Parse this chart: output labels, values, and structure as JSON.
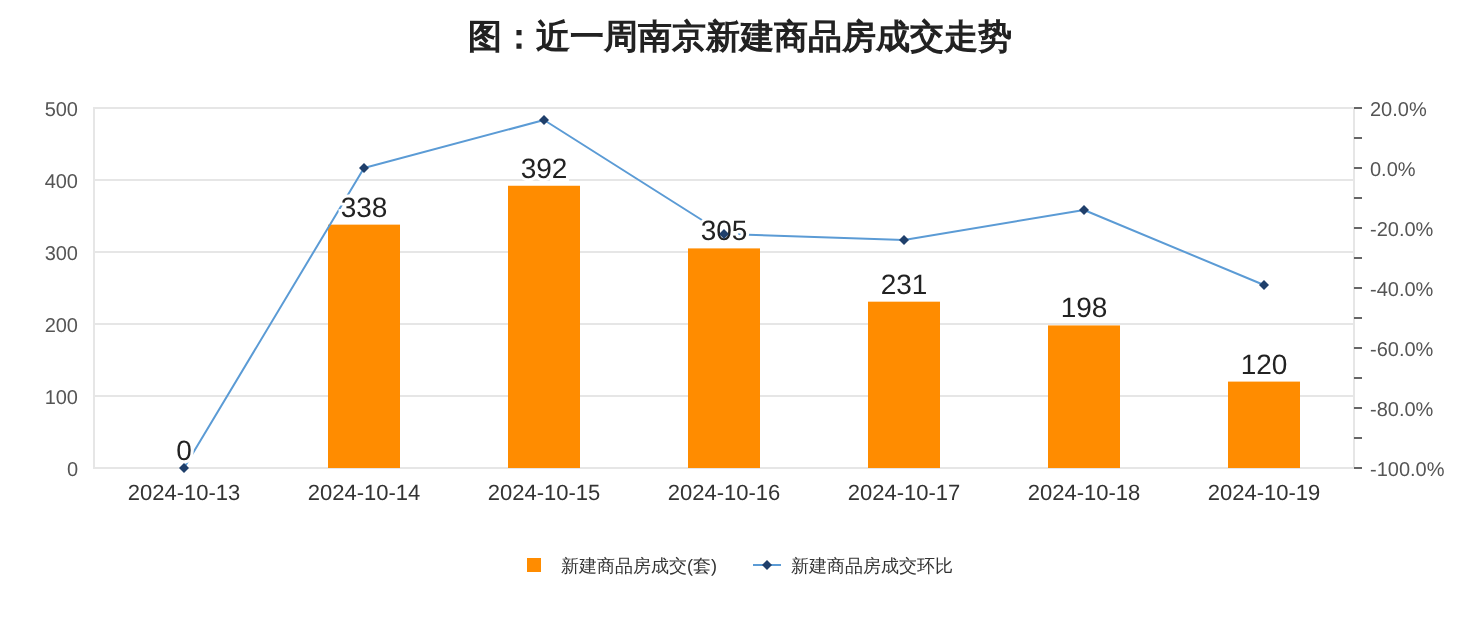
{
  "chart_data": {
    "type": "bar",
    "title": "图：近一周南京新建商品房成交走势",
    "categories": [
      "2024-10-13",
      "2024-10-14",
      "2024-10-15",
      "2024-10-16",
      "2024-10-17",
      "2024-10-18",
      "2024-10-19"
    ],
    "series": [
      {
        "name": "新建商品房成交(套)",
        "color": "#ff8c00",
        "values": [
          0,
          338,
          392,
          305,
          231,
          198,
          120
        ],
        "value_labels": [
          "0",
          "338",
          "392",
          "305",
          "231",
          "198",
          "120"
        ]
      },
      {
        "name": "新建商品房成交环比",
        "type": "line",
        "axis": "y2",
        "color": "#5b9bd5",
        "marker": "diamond",
        "values": [
          -100,
          0,
          16,
          -22,
          -24,
          -14,
          -39
        ]
      }
    ],
    "ylim": [
      0,
      500
    ],
    "yticks": [
      0,
      100,
      200,
      300,
      400,
      500
    ],
    "y2lim": [
      -100,
      20
    ],
    "y2ticks": [
      {
        "value": -100,
        "label": "-100.0%"
      },
      {
        "value": -90,
        "label": null
      },
      {
        "value": -80,
        "label": "-80.0%"
      },
      {
        "value": -70,
        "label": null
      },
      {
        "value": -60,
        "label": "-60.0%"
      },
      {
        "value": -50,
        "label": null
      },
      {
        "value": -40,
        "label": "-40.0%"
      },
      {
        "value": -30,
        "label": null
      },
      {
        "value": -20,
        "label": "-20.0%"
      },
      {
        "value": -10,
        "label": null
      },
      {
        "value": 0,
        "label": "0.0%"
      },
      {
        "value": 10,
        "label": null
      },
      {
        "value": 20,
        "label": "20.0%"
      }
    ],
    "grid": "y",
    "legend": "bottom"
  }
}
